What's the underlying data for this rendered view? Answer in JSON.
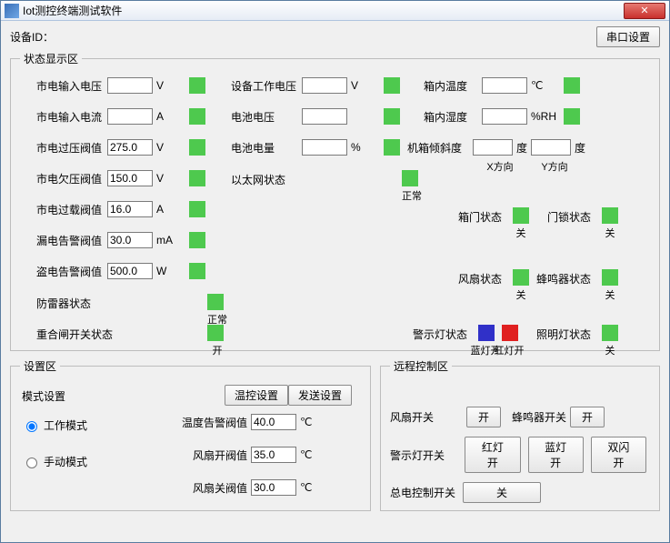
{
  "window": {
    "title": "Iot测控终端测试软件"
  },
  "header": {
    "device_id_label": "设备ID：",
    "serial_config_btn": "串口设置"
  },
  "status": {
    "legend": "状态显示区",
    "col1": [
      {
        "label": "市电输入电压",
        "value": "",
        "unit": "V"
      },
      {
        "label": "市电输入电流",
        "value": "",
        "unit": "A"
      },
      {
        "label": "市电过压阀值",
        "value": "275.0",
        "unit": "V"
      },
      {
        "label": "市电欠压阀值",
        "value": "150.0",
        "unit": "V"
      },
      {
        "label": "市电过载阀值",
        "value": "16.0",
        "unit": "A"
      },
      {
        "label": "漏电告警阀值",
        "value": "30.0",
        "unit": "mA"
      },
      {
        "label": "盗电告警阀值",
        "value": "500.0",
        "unit": "W"
      },
      {
        "label": "防雷器状态",
        "under": "正常"
      },
      {
        "label": "重合闸开关状态",
        "under": "开"
      }
    ],
    "col2": [
      {
        "label": "设备工作电压",
        "value": "",
        "unit": "V"
      },
      {
        "label": "电池电压",
        "value": "",
        "unit": ""
      },
      {
        "label": "电池电量",
        "value": "",
        "unit": "%"
      },
      {
        "label": "以太网状态",
        "under": "正常"
      }
    ],
    "col3": {
      "temp_in_label": "箱内温度",
      "temp_in_value": "",
      "temp_in_unit": "℃",
      "hum_in_label": "箱内湿度",
      "hum_in_value": "",
      "hum_in_unit": "%RH",
      "tilt_label": "机箱倾斜度",
      "tilt_x": "",
      "tilt_y": "",
      "tilt_x_label": "X方向",
      "tilt_y_label": "Y方向",
      "tilt_unit": "度",
      "door_label": "箱门状态",
      "door_under": "关",
      "lock_label": "门锁状态",
      "lock_under": "关",
      "fan_label": "风扇状态",
      "fan_under": "关",
      "buzz_label": "蜂鸣器状态",
      "buzz_under": "关",
      "warn_label": "警示灯状态",
      "blue_under": "蓝灯开",
      "red_under": "红灯开",
      "light_label": "照明灯状态",
      "light_under": "关"
    }
  },
  "settings": {
    "legend": "设置区",
    "mode_label": "模式设置",
    "temp_config_btn": "温控设置",
    "send_config_btn": "发送设置",
    "mode_work": "工作模式",
    "mode_manual": "手动模式",
    "rows": [
      {
        "label": "温度告警阀值",
        "value": "40.0",
        "unit": "℃"
      },
      {
        "label": "风扇开阀值",
        "value": "35.0",
        "unit": "℃"
      },
      {
        "label": "风扇关阀值",
        "value": "30.0",
        "unit": "℃"
      }
    ]
  },
  "control": {
    "legend": "远程控制区",
    "fan_label": "风扇开关",
    "fan_btn": "开",
    "buzz_label": "蜂鸣器开关",
    "buzz_btn": "开",
    "warn_label": "警示灯开关",
    "warn_red": "红灯开",
    "warn_blue": "蓝灯开",
    "warn_flash": "双闪开",
    "main_label": "总电控制开关",
    "main_btn": "关"
  },
  "colors": {
    "green": "#4ec94e",
    "blue": "#3030c8",
    "red": "#e02020"
  }
}
